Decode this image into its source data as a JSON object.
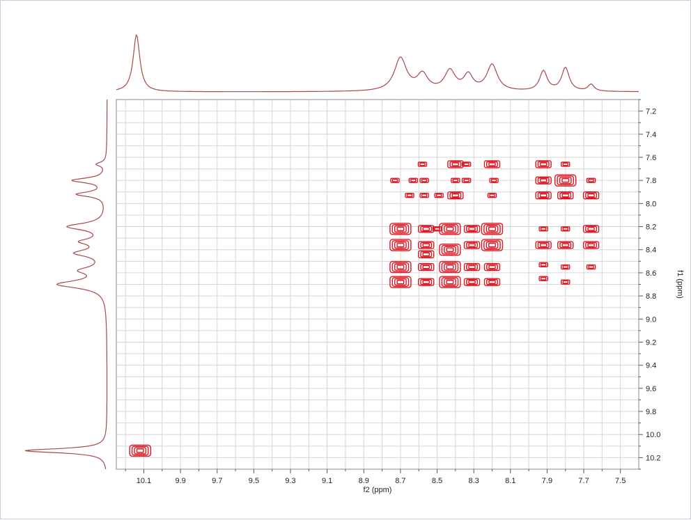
{
  "chart_data": {
    "type": "contour",
    "xlabel": "f2 (ppm)",
    "ylabel": "f1 (ppm)",
    "xlim": [
      10.25,
      7.4
    ],
    "ylim": [
      7.1,
      10.3
    ],
    "grid": true,
    "x_ticks": [
      "10.1",
      "9.9",
      "9.7",
      "9.5",
      "9.3",
      "9.1",
      "8.9",
      "8.7",
      "8.5",
      "8.3",
      "8.1",
      "7.9",
      "7.7",
      "7.5"
    ],
    "y_ticks": [
      "7.2",
      "7.4",
      "7.6",
      "7.8",
      "8.0",
      "8.2",
      "8.4",
      "8.6",
      "8.8",
      "9.0",
      "9.2",
      "9.4",
      "9.6",
      "9.8",
      "10.0",
      "10.2"
    ],
    "contour_color": "#e0141e",
    "projection_color": "#a84848",
    "projection_peaks": [
      {
        "ppm": 10.14,
        "height": 1.0,
        "width": 0.022
      },
      {
        "ppm": 8.7,
        "height": 0.58,
        "width": 0.04
      },
      {
        "ppm": 8.58,
        "height": 0.28,
        "width": 0.035
      },
      {
        "ppm": 8.43,
        "height": 0.35,
        "width": 0.035
      },
      {
        "ppm": 8.33,
        "height": 0.27,
        "width": 0.03
      },
      {
        "ppm": 8.2,
        "height": 0.46,
        "width": 0.035
      },
      {
        "ppm": 7.92,
        "height": 0.35,
        "width": 0.025
      },
      {
        "ppm": 7.8,
        "height": 0.41,
        "width": 0.025
      },
      {
        "ppm": 7.66,
        "height": 0.12,
        "width": 0.02
      }
    ],
    "cross_peaks": [
      {
        "x": 10.12,
        "y": 10.14,
        "size": 3
      },
      {
        "x": 8.7,
        "y": 8.22,
        "size": 3
      },
      {
        "x": 8.7,
        "y": 8.36,
        "size": 3
      },
      {
        "x": 8.7,
        "y": 8.55,
        "size": 3
      },
      {
        "x": 8.7,
        "y": 8.68,
        "size": 3
      },
      {
        "x": 8.73,
        "y": 7.8,
        "size": 1
      },
      {
        "x": 8.63,
        "y": 7.8,
        "size": 1
      },
      {
        "x": 8.65,
        "y": 7.93,
        "size": 1
      },
      {
        "x": 8.56,
        "y": 8.22,
        "size": 2
      },
      {
        "x": 8.56,
        "y": 8.36,
        "size": 2
      },
      {
        "x": 8.56,
        "y": 8.44,
        "size": 2
      },
      {
        "x": 8.56,
        "y": 8.55,
        "size": 2
      },
      {
        "x": 8.56,
        "y": 8.68,
        "size": 2
      },
      {
        "x": 8.58,
        "y": 7.66,
        "size": 1
      },
      {
        "x": 8.57,
        "y": 7.8,
        "size": 1
      },
      {
        "x": 8.57,
        "y": 7.93,
        "size": 1
      },
      {
        "x": 8.5,
        "y": 8.22,
        "size": 1
      },
      {
        "x": 8.49,
        "y": 7.93,
        "size": 1
      },
      {
        "x": 8.43,
        "y": 8.22,
        "size": 3
      },
      {
        "x": 8.43,
        "y": 8.4,
        "size": 3
      },
      {
        "x": 8.43,
        "y": 8.55,
        "size": 3
      },
      {
        "x": 8.43,
        "y": 8.68,
        "size": 3
      },
      {
        "x": 8.4,
        "y": 7.66,
        "size": 2
      },
      {
        "x": 8.4,
        "y": 7.8,
        "size": 1
      },
      {
        "x": 8.4,
        "y": 7.93,
        "size": 2
      },
      {
        "x": 8.31,
        "y": 8.22,
        "size": 2
      },
      {
        "x": 8.31,
        "y": 8.36,
        "size": 2
      },
      {
        "x": 8.31,
        "y": 8.55,
        "size": 2
      },
      {
        "x": 8.31,
        "y": 8.68,
        "size": 2
      },
      {
        "x": 8.34,
        "y": 7.66,
        "size": 1
      },
      {
        "x": 8.34,
        "y": 7.8,
        "size": 1
      },
      {
        "x": 8.2,
        "y": 8.22,
        "size": 3
      },
      {
        "x": 8.2,
        "y": 8.36,
        "size": 3
      },
      {
        "x": 8.2,
        "y": 8.55,
        "size": 2
      },
      {
        "x": 8.2,
        "y": 8.68,
        "size": 2
      },
      {
        "x": 8.2,
        "y": 7.66,
        "size": 2
      },
      {
        "x": 8.19,
        "y": 7.8,
        "size": 1
      },
      {
        "x": 8.2,
        "y": 7.93,
        "size": 1
      },
      {
        "x": 7.92,
        "y": 7.66,
        "size": 2
      },
      {
        "x": 7.92,
        "y": 7.8,
        "size": 2
      },
      {
        "x": 7.92,
        "y": 7.93,
        "size": 2
      },
      {
        "x": 7.92,
        "y": 8.22,
        "size": 1
      },
      {
        "x": 7.92,
        "y": 8.36,
        "size": 2
      },
      {
        "x": 7.92,
        "y": 8.53,
        "size": 1
      },
      {
        "x": 7.92,
        "y": 8.65,
        "size": 1
      },
      {
        "x": 7.8,
        "y": 7.66,
        "size": 1
      },
      {
        "x": 7.8,
        "y": 7.8,
        "size": 3
      },
      {
        "x": 7.8,
        "y": 7.93,
        "size": 2
      },
      {
        "x": 7.8,
        "y": 8.22,
        "size": 1
      },
      {
        "x": 7.8,
        "y": 8.36,
        "size": 2
      },
      {
        "x": 7.8,
        "y": 8.55,
        "size": 1
      },
      {
        "x": 7.8,
        "y": 8.68,
        "size": 1
      },
      {
        "x": 7.66,
        "y": 7.8,
        "size": 1
      },
      {
        "x": 7.66,
        "y": 7.93,
        "size": 2
      },
      {
        "x": 7.66,
        "y": 8.22,
        "size": 2
      },
      {
        "x": 7.66,
        "y": 8.36,
        "size": 2
      },
      {
        "x": 7.66,
        "y": 8.55,
        "size": 1
      }
    ]
  }
}
